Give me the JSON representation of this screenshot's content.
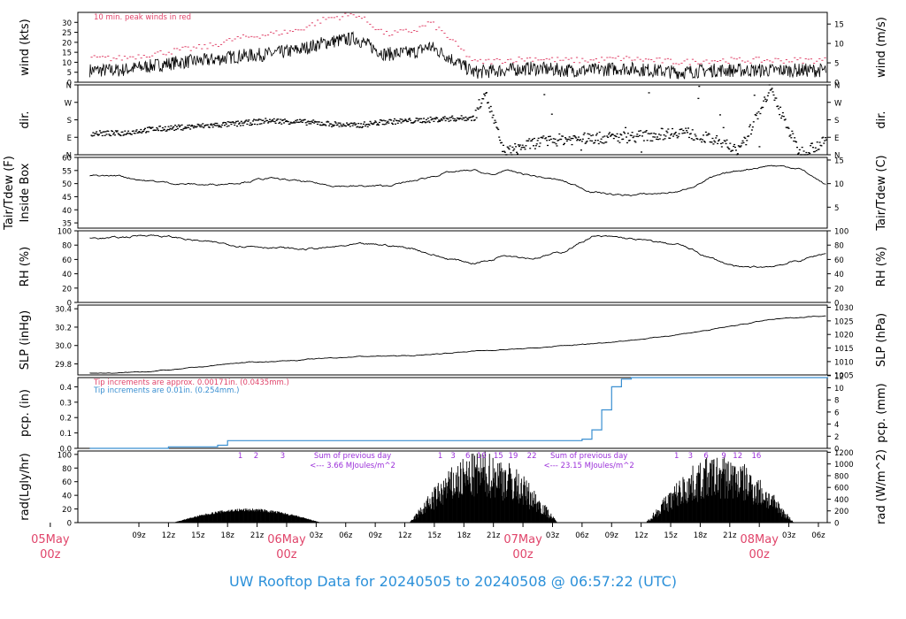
{
  "title": "UW Rooftop Data for 20240505  to  20240508 @ 06:57:22  (UTC)",
  "colors": {
    "red": "#e0446a",
    "blue": "#3a8fd1",
    "purple": "#9b30d9",
    "line": "#000000"
  },
  "chart_data": [
    {
      "type": "line",
      "name": "wind",
      "ylabel_left": "wind (kts)",
      "ylabel_right": "wind (m/s)",
      "ylim": [
        0,
        35
      ],
      "yticks_left": [
        "0",
        "5",
        "10",
        "15",
        "20",
        "25",
        "30"
      ],
      "yticks_right": [
        "0",
        "5",
        "10",
        "15"
      ],
      "annotation": "10 min. peak winds in red",
      "x_hours": [
        0,
        3,
        6,
        9,
        12,
        15,
        18,
        21,
        24,
        27,
        30,
        31.5,
        33,
        36,
        39,
        42,
        45,
        48,
        51,
        54,
        57,
        60,
        63,
        66,
        69,
        72
      ],
      "y": [
        6,
        8,
        10,
        11,
        13,
        14,
        16,
        20,
        22,
        14,
        15,
        18,
        14,
        5,
        6,
        7,
        6,
        6,
        7,
        6,
        5,
        6,
        6,
        6,
        6,
        6
      ],
      "peak": [
        12,
        14,
        16,
        18,
        22,
        24,
        26,
        32,
        34,
        24,
        26,
        30,
        24,
        10,
        11,
        12,
        11,
        11,
        12,
        11,
        10,
        11,
        11,
        11,
        11,
        11
      ]
    },
    {
      "type": "scatter",
      "name": "dir",
      "ylabel_left": "dir.",
      "ylabel_right": "dir.",
      "yticks_left": [
        "N",
        "E",
        "S",
        "W",
        "N"
      ],
      "yticks_right": [
        "N",
        "E",
        "S",
        "W",
        "N"
      ],
      "x_hours": [
        0,
        3,
        6,
        9,
        12,
        15,
        18,
        21,
        24,
        27,
        30,
        33,
        36,
        37,
        39,
        42,
        45,
        48,
        51,
        54,
        57,
        60,
        63,
        66,
        69,
        72
      ],
      "y_deg": [
        110,
        130,
        140,
        150,
        160,
        175,
        170,
        160,
        150,
        170,
        175,
        185,
        190,
        330,
        10,
        60,
        80,
        85,
        90,
        100,
        120,
        80,
        20,
        340,
        10,
        75
      ]
    },
    {
      "type": "line",
      "name": "tair",
      "ylabel_left": "Tair/Tdew (F)",
      "ylabel_left2": "Inside Box",
      "ylabel_right": "Tair/Tdew (C)",
      "ylim": [
        33,
        60
      ],
      "yticks_left": [
        "35",
        "40",
        "45",
        "50",
        "55",
        "60"
      ],
      "yticks_right": [
        "5",
        "10",
        "15"
      ],
      "x_hours": [
        0,
        3,
        6,
        9,
        12,
        15,
        18,
        21,
        24,
        27,
        30,
        33,
        36,
        38,
        39,
        42,
        45,
        48,
        51,
        54,
        57,
        60,
        63,
        66,
        69,
        72
      ],
      "y": [
        53,
        51,
        50,
        49.5,
        50.5,
        52,
        51,
        49.5,
        49,
        49,
        51,
        54,
        55,
        53,
        55,
        53,
        51,
        47,
        45.5,
        46,
        47,
        52,
        55,
        57,
        56,
        49
      ]
    },
    {
      "type": "line",
      "name": "rh",
      "ylabel_left": "RH (%)",
      "ylabel_right": "RH (%)",
      "ylim": [
        0,
        100
      ],
      "yticks_left": [
        "0",
        "20",
        "40",
        "60",
        "80",
        "100"
      ],
      "yticks_right": [
        "0",
        "20",
        "40",
        "60",
        "80",
        "100"
      ],
      "x_hours": [
        0,
        3,
        6,
        9,
        12,
        15,
        18,
        21,
        24,
        27,
        30,
        33,
        36,
        38,
        39,
        42,
        45,
        48,
        51,
        54,
        57,
        60,
        63,
        66,
        69,
        72
      ],
      "y": [
        90,
        95,
        90,
        84,
        80,
        78,
        74,
        76,
        80,
        80,
        75,
        62,
        55,
        60,
        68,
        62,
        70,
        92,
        90,
        85,
        80,
        62,
        48,
        50,
        58,
        70
      ]
    },
    {
      "type": "line",
      "name": "slp",
      "ylabel_left": "SLP (inHg)",
      "ylabel_right": "SLP (hPa)",
      "ylim": [
        29.68,
        30.44
      ],
      "yticks_left": [
        "29.8",
        "30.0",
        "30.2",
        "30.4"
      ],
      "yticks_right": [
        "1005",
        "1010",
        "1015",
        "1020",
        "1025",
        "1030"
      ],
      "x_hours": [
        0,
        6,
        12,
        18,
        24,
        30,
        36,
        42,
        48,
        54,
        60,
        66,
        72
      ],
      "y": [
        29.7,
        29.74,
        29.81,
        29.84,
        29.88,
        29.89,
        29.94,
        29.97,
        30.02,
        30.08,
        30.17,
        30.28,
        30.33
      ]
    },
    {
      "type": "line",
      "name": "pcp",
      "ylabel_left": "pcp. (in)",
      "ylabel_right": "pcp. (mm)",
      "ylim": [
        0,
        0.46
      ],
      "yticks_left": [
        "0.0",
        "0.1",
        "0.2",
        "0.3",
        "0.4"
      ],
      "yticks_right": [
        "0",
        "2",
        "4",
        "6",
        "8",
        "10",
        "12"
      ],
      "annotation_red": "Tip increments are approx. 0.00171in. (0.0435mm.)",
      "annotation_blue": "Tip increments are 0.01in. (0.254mm.)",
      "x_hours": [
        0,
        5,
        10,
        11,
        15,
        20,
        25,
        30,
        35,
        40,
        45,
        47,
        48,
        49,
        50,
        51,
        52,
        72
      ],
      "y": [
        0,
        0.01,
        0.02,
        0.05,
        0.05,
        0.05,
        0.05,
        0.05,
        0.05,
        0.05,
        0.05,
        0.06,
        0.12,
        0.25,
        0.4,
        0.45,
        0.46,
        0.46
      ]
    },
    {
      "type": "area",
      "name": "rad",
      "ylabel_left": "rad(Lgly/hr)",
      "ylabel_right": "rad (W/m^2)",
      "ylim": [
        0,
        105
      ],
      "yticks_left": [
        "0",
        "20",
        "40",
        "60",
        "80",
        "100"
      ],
      "yticks_right": [
        "0",
        "200",
        "400",
        "600",
        "800",
        "1000",
        "1200"
      ],
      "days": [
        {
          "start": 5.5,
          "end": 20.5,
          "peak": 20
        },
        {
          "start": 29.5,
          "end": 44.5,
          "peak": 100
        },
        {
          "start": 53.5,
          "end": 68.5,
          "peak": 95
        }
      ],
      "hour_labels": [
        {
          "x": 12.3,
          "t": "1"
        },
        {
          "x": 13.9,
          "t": "2"
        },
        {
          "x": 16.6,
          "t": "3"
        },
        {
          "x": 32.6,
          "t": "1"
        },
        {
          "x": 33.9,
          "t": "3"
        },
        {
          "x": 35.4,
          "t": "6"
        },
        {
          "x": 36.8,
          "t": "10"
        },
        {
          "x": 38.5,
          "t": "15"
        },
        {
          "x": 40.0,
          "t": "19"
        },
        {
          "x": 41.9,
          "t": "22"
        },
        {
          "x": 56.6,
          "t": "1"
        },
        {
          "x": 58.0,
          "t": "3"
        },
        {
          "x": 59.6,
          "t": "6"
        },
        {
          "x": 61.4,
          "t": "9"
        },
        {
          "x": 62.8,
          "t": "12"
        },
        {
          "x": 64.7,
          "t": "16"
        }
      ],
      "sums": [
        {
          "x": 23.7,
          "l1": "Sum of previous day",
          "l2": "<--- 3.66 MJoules/m^2"
        },
        {
          "x": 47.7,
          "l1": "Sum of previous day",
          "l2": "<--- 23.15 MJoules/m^2"
        }
      ]
    }
  ],
  "x_axis": {
    "ticks": [
      {
        "h": 2,
        "t": "09z"
      },
      {
        "h": 5,
        "t": "12z"
      },
      {
        "h": 8,
        "t": "15z"
      },
      {
        "h": 11,
        "t": "18z"
      },
      {
        "h": 14,
        "t": "21z"
      },
      {
        "h": 20,
        "t": "03z"
      },
      {
        "h": 23,
        "t": "06z"
      },
      {
        "h": 26,
        "t": "09z"
      },
      {
        "h": 29,
        "t": "12z"
      },
      {
        "h": 32,
        "t": "15z"
      },
      {
        "h": 35,
        "t": "18z"
      },
      {
        "h": 38,
        "t": "21z"
      },
      {
        "h": 44,
        "t": "03z"
      },
      {
        "h": 47,
        "t": "06z"
      },
      {
        "h": 50,
        "t": "09z"
      },
      {
        "h": 53,
        "t": "12z"
      },
      {
        "h": 56,
        "t": "15z"
      },
      {
        "h": 59,
        "t": "18z"
      },
      {
        "h": 62,
        "t": "21z"
      },
      {
        "h": 68,
        "t": "03z"
      },
      {
        "h": 71,
        "t": "06z"
      }
    ],
    "days": [
      {
        "h": -7,
        "d": "05May",
        "z": "00z"
      },
      {
        "h": 17,
        "d": "06May",
        "z": "00z"
      },
      {
        "h": 41,
        "d": "07May",
        "z": "00z"
      },
      {
        "h": 65,
        "d": "08May",
        "z": "00z"
      }
    ]
  }
}
